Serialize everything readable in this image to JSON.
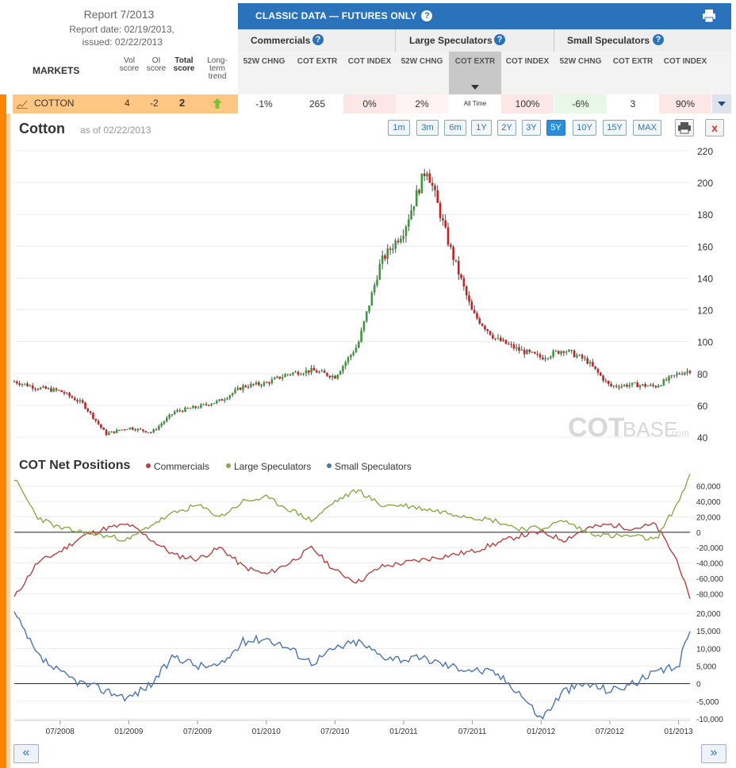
{
  "header": {
    "report_title": "Report 7/2013",
    "report_date": "Report date: 02/19/2013,",
    "issued": "issued: 02/22/2013",
    "markets_label": "MARKETS",
    "columns": {
      "vol": "Vol score",
      "oi": "OI score",
      "total": "Total score",
      "trend": "Long-term trend"
    }
  },
  "classic": {
    "title": "CLASSIC DATA — FUTURES ONLY",
    "groups": [
      "Commercials",
      "Large Speculators",
      "Small Speculators"
    ],
    "subheaders": [
      "52W CHNG",
      "COT EXTR",
      "COT INDEX",
      "52W CHNG",
      "COT EXTR",
      "COT INDEX",
      "52W CHNG",
      "COT EXTR",
      "COT INDEX"
    ]
  },
  "market_row": {
    "name": "COTTON",
    "vol_score": "4",
    "oi_score": "-2",
    "total_score": "2",
    "trend": "up",
    "values": [
      "-1%",
      "265",
      "0%",
      "2%",
      "All Time",
      "100%",
      "-6%",
      "3",
      "90%"
    ],
    "cell_colors": [
      "#ffffff",
      "#ffffff",
      "#fde6e6",
      "#fff3f3",
      "#ffffff",
      "#fde6e6",
      "#e8f8e8",
      "#ffffff",
      "#fde6e6"
    ]
  },
  "chart": {
    "title": "Cotton",
    "as_of": "as of 02/22/2013",
    "ranges": [
      "1m",
      "3m",
      "6m",
      "1Y",
      "2Y",
      "3Y",
      "5Y",
      "10Y",
      "15Y",
      "MAX"
    ],
    "active_range": "5Y",
    "watermark_bold": "COT",
    "watermark_light": "BASE",
    "watermark_suffix": ".com",
    "cot_title": "COT Net Positions",
    "legend": [
      "Commercials",
      "Large Speculators",
      "Small Speculators"
    ],
    "colors": {
      "commercials": "#b94040",
      "large": "#8aaa48",
      "small": "#4a75b0",
      "up": "#3a9a3a",
      "down": "#c82020"
    }
  },
  "chart_data": [
    {
      "type": "line",
      "title": "Cotton",
      "note": "candlestick price chart, weekly",
      "x": [
        "2008-03",
        "2008-05",
        "2008-07",
        "2008-09",
        "2008-11",
        "2009-01",
        "2009-03",
        "2009-05",
        "2009-07",
        "2009-09",
        "2009-11",
        "2010-01",
        "2010-03",
        "2010-05",
        "2010-07",
        "2010-09",
        "2010-11",
        "2011-01",
        "2011-03",
        "2011-05",
        "2011-07",
        "2011-09",
        "2011-11",
        "2012-01",
        "2012-03",
        "2012-05",
        "2012-07",
        "2012-09",
        "2012-11",
        "2013-01",
        "2013-02"
      ],
      "series": [
        {
          "values": [
            75,
            71,
            69,
            61,
            42,
            46,
            43,
            56,
            59,
            63,
            72,
            74,
            80,
            82,
            78,
            98,
            150,
            170,
            210,
            160,
            118,
            102,
            95,
            90,
            95,
            88,
            72,
            73,
            72,
            80,
            82
          ]
        }
      ],
      "ylim": [
        40,
        220
      ],
      "yticks": [
        40,
        60,
        80,
        100,
        120,
        140,
        160,
        180,
        200,
        220
      ],
      "xticks": [
        "07/2008",
        "01/2009",
        "07/2009",
        "01/2010",
        "07/2010",
        "01/2011",
        "07/2011",
        "01/2012",
        "07/2012",
        "01/2013"
      ]
    },
    {
      "type": "line",
      "title": "COT Net Positions",
      "x": [
        "2008-03",
        "2008-05",
        "2008-07",
        "2008-09",
        "2008-11",
        "2009-01",
        "2009-03",
        "2009-05",
        "2009-07",
        "2009-09",
        "2009-11",
        "2010-01",
        "2010-03",
        "2010-05",
        "2010-07",
        "2010-09",
        "2010-11",
        "2011-01",
        "2011-03",
        "2011-05",
        "2011-07",
        "2011-09",
        "2011-11",
        "2012-01",
        "2012-03",
        "2012-05",
        "2012-07",
        "2012-09",
        "2012-11",
        "2013-01",
        "2013-02"
      ],
      "series": [
        {
          "name": "Commercials",
          "values": [
            -85000,
            -40000,
            -25000,
            -5000,
            5000,
            10000,
            -10000,
            -30000,
            -35000,
            -20000,
            -45000,
            -55000,
            -40000,
            -20000,
            -50000,
            -65000,
            -45000,
            -40000,
            -35000,
            -30000,
            -25000,
            -15000,
            -5000,
            0,
            -10000,
            5000,
            10000,
            5000,
            10000,
            -40000,
            -90000
          ]
        },
        {
          "name": "Large Speculators",
          "values": [
            70000,
            20000,
            5000,
            0,
            -5000,
            -10000,
            10000,
            25000,
            35000,
            20000,
            40000,
            45000,
            30000,
            15000,
            40000,
            55000,
            35000,
            35000,
            30000,
            25000,
            20000,
            15000,
            5000,
            5000,
            15000,
            0,
            -5000,
            -5000,
            -10000,
            40000,
            75000
          ]
        },
        {
          "name": "Small Speculators",
          "values": [
            20000,
            8000,
            3000,
            0,
            -2000,
            -4000,
            0,
            8000,
            5000,
            5000,
            12000,
            13000,
            10000,
            6000,
            10000,
            12000,
            8000,
            7000,
            7000,
            5000,
            4000,
            3000,
            -2000,
            -10000,
            -2000,
            0,
            -2000,
            0,
            3000,
            5000,
            16000
          ]
        }
      ],
      "ylim_large_comm": [
        -90000,
        70000
      ],
      "yticks_large_comm": [
        -80000,
        -60000,
        -40000,
        -20000,
        0,
        20000,
        40000,
        60000
      ],
      "ylim_small": [
        -10000,
        20000
      ],
      "yticks_small": [
        -10000,
        -5000,
        0,
        5000,
        10000,
        15000,
        20000
      ]
    }
  ]
}
